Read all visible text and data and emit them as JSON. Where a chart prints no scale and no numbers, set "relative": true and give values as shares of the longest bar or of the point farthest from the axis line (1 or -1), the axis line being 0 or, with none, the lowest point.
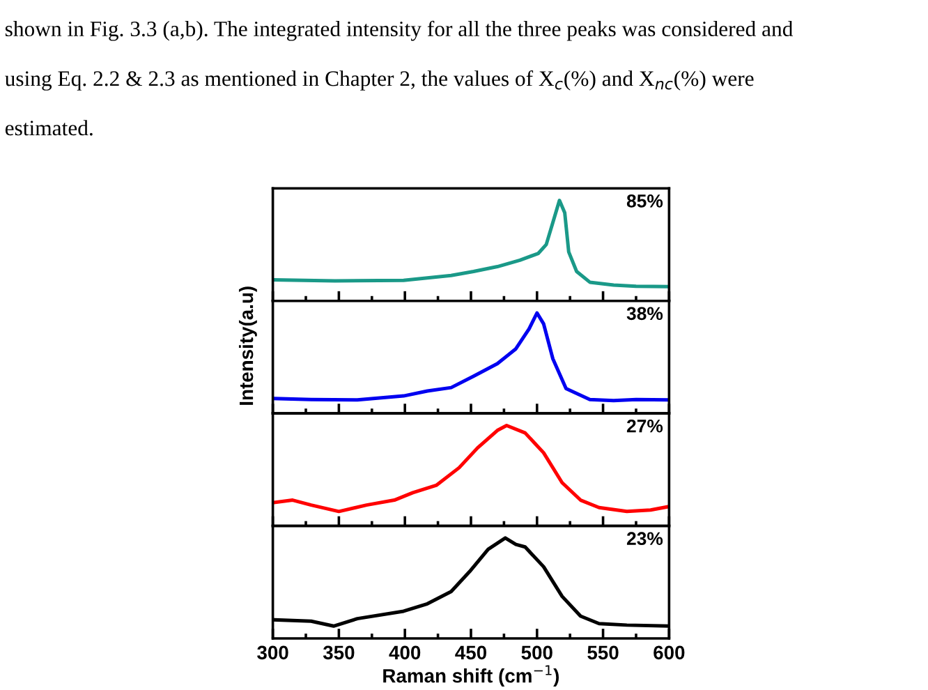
{
  "chart_data": [
    {
      "type": "line",
      "relative": true,
      "annotations": [
        "shown in Fig. 3.3 (a,b). The integrated intensity for all the three peaks was considered and",
        "using Eq. 2.2 & 2.3 as mentioned in Chapter 2, the values of X$_{c}$(%) and X$_{nc}$(%) were",
        "estimated."
      ],
      "xlim": [
        300,
        600
      ],
      "xticks": [
        300,
        {
          "value": 325,
          "label": null
        },
        350,
        {
          "value": 375,
          "label": null
        },
        400,
        {
          "value": 425,
          "label": null
        },
        450,
        {
          "value": 475,
          "label": null
        },
        500,
        {
          "value": 525,
          "label": null
        },
        550,
        {
          "value": 575,
          "label": null
        },
        600
      ],
      "tick_labels": false,
      "legend": false,
      "series": [
        {
          "name": "85%",
          "color": "#1a9988",
          "x": [
            301,
            347,
            399,
            435,
            452,
            470,
            487,
            501,
            507,
            512,
            517,
            521,
            524,
            530,
            540,
            558,
            575,
            600
          ],
          "values": [
            0.21,
            0.2,
            0.205,
            0.253,
            0.293,
            0.341,
            0.405,
            0.473,
            0.561,
            0.78,
            1.0,
            0.878,
            0.488,
            0.293,
            0.186,
            0.157,
            0.146,
            0.142
          ]
        }
      ]
    },
    {
      "type": "line",
      "relative": true,
      "ylabel": "Intensity(a.u)",
      "xlim": [
        300,
        600
      ],
      "xticks": [
        300,
        {
          "value": 325,
          "label": null
        },
        350,
        {
          "value": 375,
          "label": null
        },
        400,
        {
          "value": 425,
          "label": null
        },
        450,
        {
          "value": 475,
          "label": null
        },
        500,
        {
          "value": 525,
          "label": null
        },
        550,
        {
          "value": 575,
          "label": null
        },
        600
      ],
      "tick_labels": false,
      "legend": false,
      "series": [
        {
          "name": "38%",
          "color": "#0000f0",
          "x": [
            301,
            329,
            364,
            399,
            417,
            435,
            452,
            470,
            484,
            494,
            500,
            505,
            512,
            522,
            540,
            558,
            575,
            600
          ],
          "values": [
            0.148,
            0.138,
            0.134,
            0.174,
            0.223,
            0.257,
            0.371,
            0.495,
            0.643,
            0.841,
            1.0,
            0.892,
            0.544,
            0.247,
            0.138,
            0.128,
            0.138,
            0.134
          ]
        }
      ]
    },
    {
      "type": "line",
      "relative": true,
      "xlim": [
        300,
        600
      ],
      "xticks": [
        300,
        {
          "value": 325,
          "label": null
        },
        350,
        {
          "value": 375,
          "label": null
        },
        400,
        {
          "value": 425,
          "label": null
        },
        450,
        {
          "value": 475,
          "label": null
        },
        500,
        {
          "value": 525,
          "label": null
        },
        550,
        {
          "value": 575,
          "label": null
        },
        600
      ],
      "tick_labels": false,
      "legend": false,
      "series": [
        {
          "name": "27%",
          "color": "#ff0000",
          "x": [
            301,
            315,
            329,
            350,
            371,
            392,
            406,
            424,
            441,
            455,
            470,
            477,
            491,
            505,
            519,
            533,
            547,
            568,
            586,
            600
          ],
          "values": [
            0.233,
            0.257,
            0.208,
            0.144,
            0.208,
            0.257,
            0.331,
            0.406,
            0.579,
            0.777,
            0.951,
            1.0,
            0.926,
            0.728,
            0.431,
            0.257,
            0.183,
            0.144,
            0.159,
            0.193
          ]
        }
      ]
    },
    {
      "type": "line",
      "relative": true,
      "xlabel": "Raman shift (cm$^{−1}$)",
      "xlim": [
        300,
        600
      ],
      "xticks": [
        300,
        {
          "value": 325,
          "label": null
        },
        350,
        {
          "value": 375,
          "label": null
        },
        400,
        {
          "value": 425,
          "label": null
        },
        450,
        {
          "value": 475,
          "label": null
        },
        500,
        {
          "value": 525,
          "label": null
        },
        550,
        {
          "value": 575,
          "label": null
        },
        600
      ],
      "tick_labels": "x",
      "legend": false,
      "series": [
        {
          "name": "23%",
          "color": "#000000",
          "x": [
            301,
            329,
            346,
            364,
            399,
            417,
            435,
            449,
            463,
            476,
            484,
            491,
            505,
            519,
            533,
            547,
            568,
            600
          ],
          "values": [
            0.186,
            0.172,
            0.123,
            0.197,
            0.271,
            0.345,
            0.467,
            0.666,
            0.888,
            1.0,
            0.936,
            0.911,
            0.714,
            0.419,
            0.222,
            0.148,
            0.133,
            0.123
          ]
        }
      ]
    }
  ]
}
